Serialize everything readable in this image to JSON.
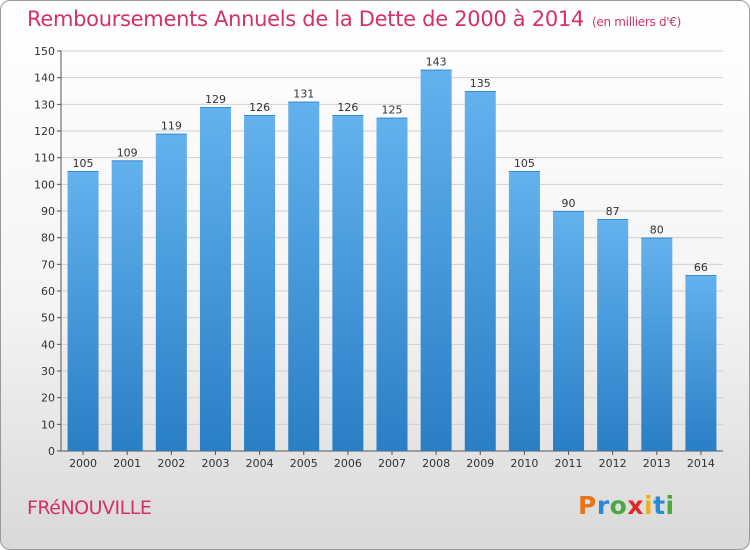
{
  "title": "Remboursements Annuels de la Dette de 2000 à 2014",
  "subtitle": "(en milliers d'€)",
  "city": "FRéNOUVILLE",
  "logo": {
    "letters": [
      "P",
      "r",
      "o",
      "x",
      "i",
      "t",
      "i"
    ],
    "colors": [
      "#e8751a",
      "#2b8ad6",
      "#4aa83e",
      "#e02a2a",
      "#e8b21a",
      "#2b8ad6",
      "#4aa83e"
    ]
  },
  "colors": {
    "bar_top": "#63b2ee",
    "bar_bottom": "#2a7ec4",
    "title": "#d4306b"
  },
  "chart_data": {
    "type": "bar",
    "title": "Remboursements Annuels de la Dette de 2000 à 2014",
    "xlabel": "",
    "ylabel": "",
    "ylim": [
      0,
      150
    ],
    "yticks": [
      0,
      10,
      20,
      30,
      40,
      50,
      60,
      70,
      80,
      90,
      100,
      110,
      120,
      130,
      140,
      150
    ],
    "grid": true,
    "categories": [
      "2000",
      "2001",
      "2002",
      "2003",
      "2004",
      "2005",
      "2006",
      "2007",
      "2008",
      "2009",
      "2010",
      "2011",
      "2012",
      "2013",
      "2014"
    ],
    "values": [
      105,
      109,
      119,
      129,
      126,
      131,
      126,
      125,
      143,
      135,
      105,
      90,
      87,
      80,
      66
    ]
  }
}
